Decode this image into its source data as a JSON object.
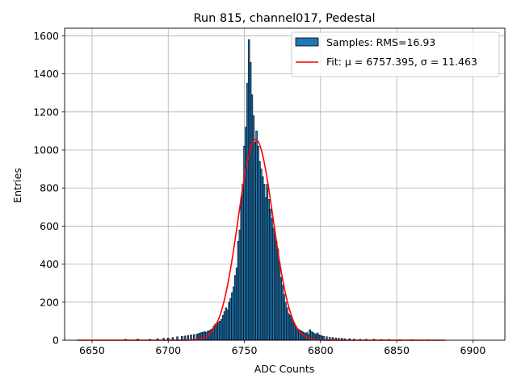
{
  "chart_data": {
    "type": "bar",
    "title": "Run 815, channel017, Pedestal",
    "xlabel": "ADC Counts",
    "ylabel": "Entries",
    "xlim": [
      6632,
      6921
    ],
    "ylim": [
      0,
      1640
    ],
    "xticks": [
      6650,
      6700,
      6750,
      6800,
      6850,
      6900
    ],
    "yticks": [
      0,
      200,
      400,
      600,
      800,
      1000,
      1200,
      1400,
      1600
    ],
    "grid": true,
    "legend_position": "top-right",
    "bin_width": 1,
    "series": [
      {
        "name": "Samples: RMS=16.93",
        "kind": "histogram",
        "color": "#1f77b4",
        "edgecolor": "#000000",
        "x": [
          6672,
          6680,
          6688,
          6693,
          6697,
          6700,
          6703,
          6706,
          6709,
          6711,
          6713,
          6715,
          6717,
          6719,
          6720,
          6721,
          6722,
          6723,
          6724,
          6725,
          6726,
          6727,
          6728,
          6729,
          6730,
          6731,
          6732,
          6733,
          6734,
          6735,
          6736,
          6737,
          6738,
          6739,
          6740,
          6741,
          6742,
          6743,
          6744,
          6745,
          6746,
          6747,
          6748,
          6749,
          6750,
          6751,
          6752,
          6753,
          6754,
          6755,
          6756,
          6757,
          6758,
          6759,
          6760,
          6761,
          6762,
          6763,
          6764,
          6765,
          6766,
          6767,
          6768,
          6769,
          6770,
          6771,
          6772,
          6773,
          6774,
          6775,
          6776,
          6777,
          6778,
          6779,
          6780,
          6781,
          6782,
          6783,
          6784,
          6785,
          6786,
          6787,
          6788,
          6789,
          6790,
          6791,
          6792,
          6793,
          6794,
          6795,
          6796,
          6797,
          6798,
          6799,
          6800,
          6801,
          6802,
          6804,
          6806,
          6808,
          6810,
          6812,
          6814,
          6816,
          6819,
          6822,
          6826,
          6830,
          6835,
          6840,
          6845,
          6852,
          6860,
          6870
        ],
        "values": [
          5,
          6,
          5,
          8,
          10,
          12,
          14,
          18,
          20,
          22,
          25,
          28,
          30,
          32,
          35,
          38,
          40,
          42,
          45,
          40,
          48,
          50,
          55,
          60,
          75,
          85,
          90,
          95,
          100,
          110,
          130,
          150,
          170,
          160,
          200,
          220,
          250,
          280,
          340,
          380,
          520,
          580,
          750,
          820,
          1020,
          1120,
          1350,
          1580,
          1460,
          1290,
          1180,
          1040,
          1100,
          1020,
          940,
          900,
          860,
          820,
          750,
          820,
          740,
          690,
          640,
          590,
          560,
          520,
          480,
          410,
          330,
          290,
          240,
          200,
          170,
          140,
          130,
          115,
          95,
          80,
          70,
          60,
          55,
          50,
          45,
          40,
          35,
          40,
          30,
          55,
          45,
          40,
          35,
          30,
          38,
          28,
          25,
          22,
          20,
          18,
          15,
          14,
          12,
          10,
          10,
          8,
          8,
          6,
          5,
          5,
          5,
          4,
          4,
          3,
          3,
          2
        ]
      },
      {
        "name": "Fit: μ = 6757.395, σ = 11.463",
        "kind": "line",
        "color": "#ff0000",
        "mu": 6757.395,
        "sigma": 11.463,
        "amplitude": 1055,
        "x_range": [
          6640,
          6882
        ]
      }
    ]
  }
}
